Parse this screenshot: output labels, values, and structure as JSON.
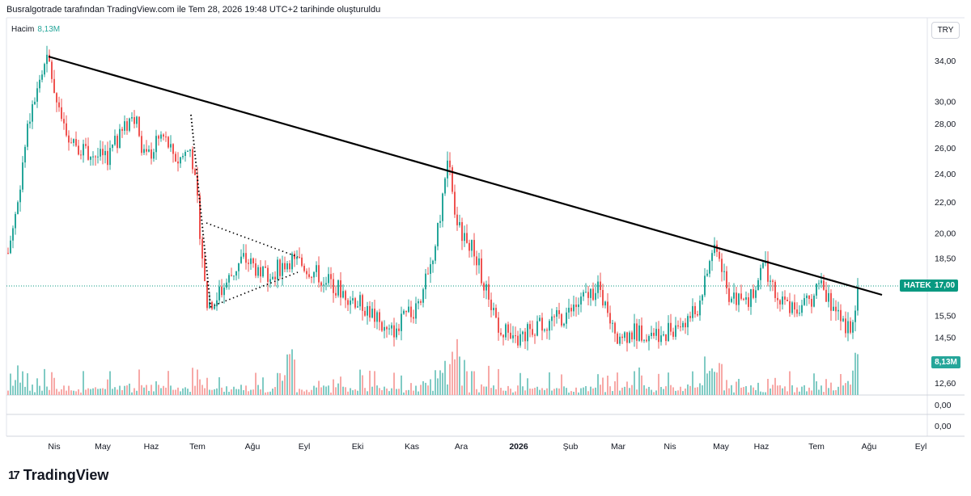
{
  "header": {
    "text": "Busralgotrade tarafından TradingView.com ile Tem 28, 2026 19:48 UTC+2 tarihinde oluşturuldu"
  },
  "volume": {
    "label": "Hacim",
    "value": "8,13M"
  },
  "currency": "TRY",
  "symbol_tag": {
    "symbol": "HATEK",
    "price": "17,00"
  },
  "volume_tag": "8,13M",
  "brand": {
    "logo": "17",
    "name": "TradingView"
  },
  "colors": {
    "up": "#26a69a",
    "down": "#ef5350",
    "vol_up": "#80cbc4",
    "vol_down": "#f7a9a7",
    "tag": "#089981"
  },
  "chart_data": {
    "type": "candlestick",
    "y_axis": {
      "scale": "log",
      "ticks": [
        "34,00",
        "30,00",
        "28,00",
        "26,00",
        "24,00",
        "22,00",
        "20,00",
        "18,50",
        "15,50",
        "14,50",
        "12,60"
      ],
      "tick_values": [
        34,
        30,
        28,
        26,
        24,
        22,
        20,
        18.5,
        15.5,
        14.5,
        12.6
      ]
    },
    "lower_axis_ticks": [
      "0,00",
      "0,00"
    ],
    "x_axis": {
      "ticks": [
        "Nis",
        "May",
        "Haz",
        "Tem",
        "Ağu",
        "Eyl",
        "Eki",
        "Kas",
        "Ara",
        "2026",
        "Şub",
        "Mar",
        "Nis",
        "May",
        "Haz",
        "Tem",
        "Ağu",
        "Eyl"
      ],
      "bold": [
        "2026"
      ]
    },
    "key_points": [
      {
        "date": "Nis",
        "price": 34.0
      },
      {
        "date": "Haz",
        "price": 29.0
      },
      {
        "date": "Tem",
        "price": 26.0
      },
      {
        "date": "Tem",
        "price": 16.0
      },
      {
        "date": "Eyl",
        "price": 18.5
      },
      {
        "date": "Kas",
        "price": 25.0
      },
      {
        "date": "Ara",
        "price": 14.2
      },
      {
        "date": "Mar",
        "price": 14.5
      },
      {
        "date": "May",
        "price": 19.5
      },
      {
        "date": "Haz",
        "price": 18.2
      },
      {
        "date": "Tem",
        "price": 14.8
      },
      {
        "date": "Ağu",
        "price": 17.0
      }
    ],
    "last_price": 17.0,
    "last_volume": "8,13M",
    "grid": false
  }
}
